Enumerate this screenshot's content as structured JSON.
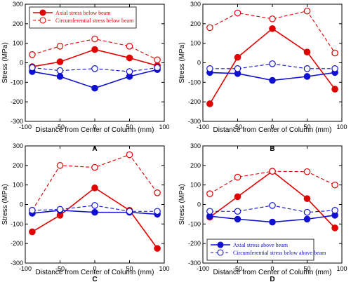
{
  "colors": {
    "red": "#e00000",
    "blue": "#1010d0",
    "axis": "#000000"
  },
  "chart_data": [
    {
      "type": "line",
      "panel_label": "A",
      "xlabel": "Distance from Center of Column (mm)",
      "ylabel": "Stress (MPa)",
      "xlim": [
        -100,
        100
      ],
      "ylim": [
        -300,
        300
      ],
      "xticks": [
        -100,
        -50,
        0,
        50,
        100
      ],
      "yticks": [
        -300,
        -200,
        -100,
        0,
        100,
        200,
        300
      ],
      "x": [
        -90,
        -50,
        0,
        50,
        90
      ],
      "legend_position": "top-left",
      "legend_color": "red",
      "series": [
        {
          "name": "Axial stress below beam",
          "color": "red",
          "style": "solid",
          "marker": "filled",
          "legend": true,
          "values": [
            -20,
            5,
            68,
            25,
            -15
          ]
        },
        {
          "name": "Circumferential stress below beam",
          "color": "red",
          "style": "dashed",
          "marker": "open",
          "legend": true,
          "values": [
            42,
            85,
            122,
            85,
            15
          ]
        },
        {
          "color": "blue",
          "style": "solid",
          "marker": "filled",
          "legend": false,
          "values": [
            -45,
            -70,
            -130,
            -70,
            -35
          ]
        },
        {
          "color": "blue",
          "style": "dashed",
          "marker": "open",
          "legend": false,
          "values": [
            -25,
            -40,
            -30,
            -45,
            -25
          ]
        }
      ]
    },
    {
      "type": "line",
      "panel_label": "B",
      "xlabel": "Distance from Center of Column (mm)",
      "ylabel": "Stress (MPa)",
      "xlim": [
        -100,
        100
      ],
      "ylim": [
        -300,
        300
      ],
      "xticks": [
        -100,
        -50,
        0,
        50,
        100
      ],
      "yticks": [
        -300,
        -200,
        -100,
        0,
        100,
        200,
        300
      ],
      "x": [
        -90,
        -50,
        0,
        50,
        90
      ],
      "series": [
        {
          "color": "red",
          "style": "solid",
          "marker": "filled",
          "values": [
            -210,
            28,
            175,
            55,
            -135
          ]
        },
        {
          "color": "red",
          "style": "dashed",
          "marker": "open",
          "values": [
            180,
            255,
            225,
            265,
            50
          ]
        },
        {
          "color": "blue",
          "style": "solid",
          "marker": "filled",
          "values": [
            -50,
            -55,
            -90,
            -70,
            -50
          ]
        },
        {
          "color": "blue",
          "style": "dashed",
          "marker": "open",
          "values": [
            -30,
            -30,
            -5,
            -30,
            -30
          ]
        }
      ]
    },
    {
      "type": "line",
      "panel_label": "C",
      "xlabel": "Distance from Center of Column (mm)",
      "ylabel": "Stress (MPa)",
      "xlim": [
        -100,
        100
      ],
      "ylim": [
        -300,
        300
      ],
      "xticks": [
        -100,
        -50,
        0,
        50,
        100
      ],
      "yticks": [
        -300,
        -200,
        -100,
        0,
        100,
        200,
        300
      ],
      "x": [
        -90,
        -50,
        0,
        50,
        90
      ],
      "series": [
        {
          "color": "red",
          "style": "solid",
          "marker": "filled",
          "values": [
            -140,
            -55,
            85,
            -30,
            -225
          ]
        },
        {
          "color": "red",
          "style": "dashed",
          "marker": "open",
          "values": [
            -30,
            200,
            190,
            255,
            60
          ]
        },
        {
          "color": "blue",
          "style": "solid",
          "marker": "filled",
          "values": [
            -45,
            -30,
            -40,
            -40,
            -50
          ]
        },
        {
          "color": "blue",
          "style": "dashed",
          "marker": "open",
          "values": [
            -30,
            -25,
            -5,
            -35,
            -35
          ]
        }
      ]
    },
    {
      "type": "line",
      "panel_label": "D",
      "xlabel": "Distance from Center of Column (mm)",
      "ylabel": "Stress (MPa)",
      "xlim": [
        -100,
        100
      ],
      "ylim": [
        -300,
        300
      ],
      "xticks": [
        -100,
        -50,
        0,
        50,
        100
      ],
      "yticks": [
        -300,
        -200,
        -100,
        0,
        100,
        200,
        300
      ],
      "x": [
        -90,
        -50,
        0,
        50,
        90
      ],
      "legend_position": "bottom-left",
      "legend_color": "blue",
      "series": [
        {
          "color": "red",
          "style": "solid",
          "marker": "filled",
          "legend": false,
          "values": [
            -65,
            40,
            170,
            30,
            -120
          ]
        },
        {
          "color": "red",
          "style": "dashed",
          "marker": "open",
          "legend": false,
          "values": [
            55,
            140,
            170,
            168,
            100
          ]
        },
        {
          "name": "Axial stress above beam",
          "color": "blue",
          "style": "solid",
          "marker": "filled",
          "legend": true,
          "values": [
            -60,
            -75,
            -90,
            -75,
            -55
          ]
        },
        {
          "name": "Circumferential stress below above beam",
          "color": "blue",
          "style": "dashed",
          "marker": "open",
          "legend": true,
          "values": [
            -35,
            -35,
            -5,
            -40,
            -30
          ]
        }
      ]
    }
  ]
}
